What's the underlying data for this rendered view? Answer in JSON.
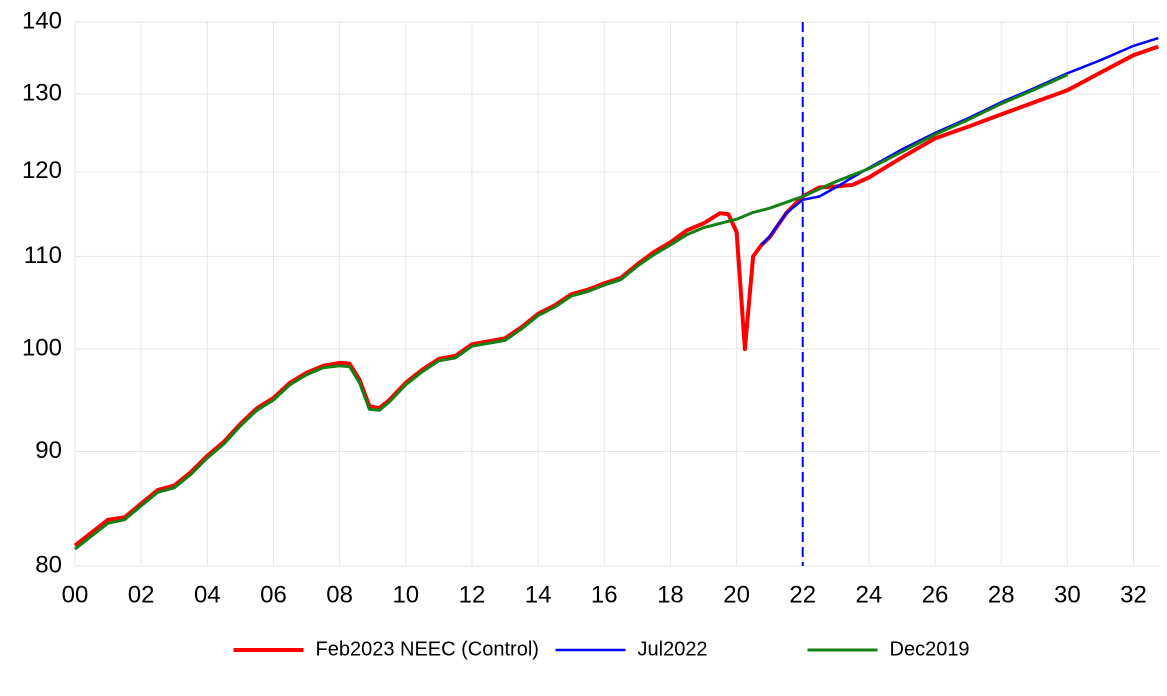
{
  "chart_data": {
    "type": "line",
    "log_y": true,
    "grid": true,
    "legend": "bottom",
    "xlim": [
      2000,
      2032.8
    ],
    "ylim": [
      80,
      140
    ],
    "yticks": [
      80,
      90,
      100,
      110,
      120,
      130,
      140
    ],
    "xticks": [
      {
        "value": 2000,
        "label": "00"
      },
      {
        "value": 2002,
        "label": "02"
      },
      {
        "value": 2004,
        "label": "04"
      },
      {
        "value": 2006,
        "label": "06"
      },
      {
        "value": 2008,
        "label": "08"
      },
      {
        "value": 2010,
        "label": "10"
      },
      {
        "value": 2012,
        "label": "12"
      },
      {
        "value": 2014,
        "label": "14"
      },
      {
        "value": 2016,
        "label": "16"
      },
      {
        "value": 2018,
        "label": "18"
      },
      {
        "value": 2020,
        "label": "20"
      },
      {
        "value": 2022,
        "label": "22"
      },
      {
        "value": 2024,
        "label": "24"
      },
      {
        "value": 2026,
        "label": "26"
      },
      {
        "value": 2028,
        "label": "28"
      },
      {
        "value": 2030,
        "label": "30"
      },
      {
        "value": 2032,
        "label": "32"
      }
    ],
    "vline": {
      "x": 2022,
      "color": "#0000ff"
    },
    "series": [
      {
        "name": "Feb2023 NEEC (Control)",
        "color": "#ff0000",
        "width": 4,
        "x": [
          2000,
          2000.5,
          2001,
          2001.5,
          2002,
          2002.5,
          2003,
          2003.5,
          2004,
          2004.5,
          2005,
          2005.5,
          2006,
          2006.5,
          2007,
          2007.5,
          2008,
          2008.3,
          2008.6,
          2008.9,
          2009.2,
          2009.5,
          2010,
          2010.5,
          2011,
          2011.5,
          2012,
          2012.5,
          2013,
          2013.5,
          2014,
          2014.5,
          2015,
          2015.5,
          2016,
          2016.5,
          2017,
          2017.5,
          2018,
          2018.5,
          2019,
          2019.5,
          2019.75,
          2020,
          2020.25,
          2020.5,
          2020.75,
          2021,
          2021.5,
          2022,
          2022.5,
          2023,
          2023.5,
          2024,
          2025,
          2026,
          2027,
          2028,
          2029,
          2030,
          2031,
          2032,
          2032.75
        ],
        "values": [
          81.7,
          82.8,
          83.9,
          84.1,
          85.3,
          86.5,
          86.9,
          88.1,
          89.6,
          90.9,
          92.6,
          94.1,
          95.1,
          96.6,
          97.6,
          98.3,
          98.6,
          98.5,
          96.9,
          94.3,
          94.1,
          94.9,
          96.6,
          97.9,
          99.0,
          99.3,
          100.5,
          100.8,
          101.1,
          102.3,
          103.7,
          104.6,
          105.8,
          106.3,
          107.0,
          107.6,
          109.1,
          110.5,
          111.6,
          113.0,
          113.8,
          115.0,
          114.9,
          112.8,
          100.0,
          110.0,
          111.3,
          112.2,
          115.0,
          117.0,
          118.1,
          118.2,
          118.4,
          119.3,
          121.8,
          124.2,
          125.7,
          127.3,
          128.9,
          130.5,
          132.9,
          135.3,
          136.5
        ]
      },
      {
        "name": "Jul2022",
        "color": "#0000ff",
        "width": 2.5,
        "x": [
          2020.75,
          2021,
          2021.5,
          2022,
          2022.5,
          2023,
          2023.5,
          2024,
          2025,
          2026,
          2027,
          2028,
          2029,
          2030,
          2031,
          2032,
          2032.75
        ],
        "values": [
          111.3,
          112.3,
          115.0,
          116.6,
          117.0,
          118.1,
          119.3,
          120.5,
          122.8,
          124.9,
          126.8,
          128.9,
          130.8,
          132.8,
          134.6,
          136.6,
          137.7
        ]
      },
      {
        "name": "Dec2019",
        "color": "#138013",
        "width": 3,
        "x": [
          2000,
          2000.5,
          2001,
          2001.5,
          2002,
          2002.5,
          2003,
          2003.5,
          2004,
          2004.5,
          2005,
          2005.5,
          2006,
          2006.5,
          2007,
          2007.5,
          2008,
          2008.3,
          2008.6,
          2008.9,
          2009.2,
          2009.5,
          2010,
          2010.5,
          2011,
          2011.5,
          2012,
          2012.5,
          2013,
          2013.5,
          2014,
          2014.5,
          2015,
          2015.5,
          2016,
          2016.5,
          2017,
          2017.5,
          2018,
          2018.5,
          2019,
          2019.5,
          2020,
          2020.5,
          2021,
          2021.5,
          2022,
          2022.5,
          2023,
          2023.5,
          2024,
          2025,
          2026,
          2027,
          2028,
          2029,
          2030
        ],
        "values": [
          81.4,
          82.5,
          83.6,
          83.9,
          85.1,
          86.3,
          86.7,
          87.9,
          89.4,
          90.7,
          92.4,
          93.9,
          94.9,
          96.4,
          97.4,
          98.1,
          98.3,
          98.2,
          96.6,
          94.0,
          93.9,
          94.7,
          96.4,
          97.7,
          98.8,
          99.1,
          100.3,
          100.6,
          100.9,
          102.1,
          103.5,
          104.4,
          105.6,
          106.1,
          106.8,
          107.4,
          108.9,
          110.2,
          111.3,
          112.5,
          113.3,
          113.8,
          114.3,
          115.1,
          115.6,
          116.3,
          117.0,
          117.9,
          118.8,
          119.6,
          120.4,
          122.5,
          124.7,
          126.6,
          128.7,
          130.6,
          132.6
        ]
      }
    ]
  }
}
